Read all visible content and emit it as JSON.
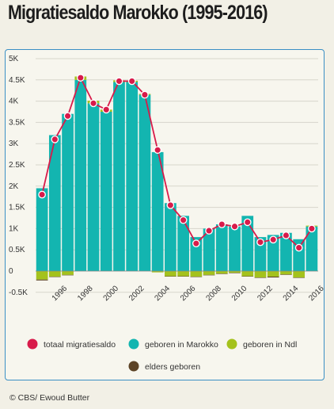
{
  "title": "Migratiesaldo Marokko (1995-2016)",
  "footer": "© CBS/ Ewoud Butter",
  "colors": {
    "totaal": "#d81b4a",
    "marokko": "#13b5b0",
    "ndl": "#a4c21c",
    "elders": "#5c4326",
    "frame": "#3a8fc4",
    "background": "#f2f0e6"
  },
  "chart_data": {
    "type": "bar",
    "years": [
      1995,
      1996,
      1997,
      1998,
      1999,
      2000,
      2001,
      2002,
      2003,
      2004,
      2005,
      2006,
      2007,
      2008,
      2009,
      2010,
      2011,
      2012,
      2013,
      2014,
      2015,
      2016
    ],
    "x_tick_labels": [
      "1996",
      "1998",
      "2000",
      "2002",
      "2004",
      "2006",
      "2008",
      "2010",
      "2012",
      "2014",
      "2016"
    ],
    "y_tick_labels": [
      "5K",
      "4.5K",
      "4K",
      "3.5K",
      "3K",
      "2.5K",
      "2K",
      "1.5K",
      "1K",
      "0.5K",
      "0",
      "-0.5K"
    ],
    "ylim": [
      -500,
      5000
    ],
    "legend_position": "bottom",
    "series": [
      {
        "name": "totaal migratiesaldo",
        "type": "line",
        "values": [
          1800,
          3100,
          3650,
          4550,
          3950,
          3800,
          4470,
          4470,
          4150,
          2850,
          1550,
          1200,
          650,
          950,
          1100,
          1050,
          1150,
          680,
          740,
          840,
          550,
          1000
        ]
      },
      {
        "name": "geboren in Marokko",
        "type": "bar",
        "values": [
          1950,
          3200,
          3700,
          4500,
          3950,
          3750,
          4450,
          4450,
          4150,
          2800,
          1600,
          1300,
          800,
          1000,
          1100,
          1050,
          1300,
          800,
          850,
          900,
          750,
          1050
        ]
      },
      {
        "name": "geboren in Ndl",
        "type": "bar",
        "values": [
          -200,
          -130,
          -90,
          80,
          60,
          50,
          40,
          30,
          20,
          -30,
          -120,
          -120,
          -130,
          -90,
          -60,
          -40,
          -120,
          -150,
          -130,
          -80,
          -150,
          20
        ]
      },
      {
        "name": "elders geboren",
        "type": "bar",
        "values": [
          -20,
          -10,
          -10,
          0,
          0,
          0,
          0,
          0,
          0,
          0,
          -10,
          -10,
          -10,
          -10,
          -10,
          -10,
          -10,
          -10,
          -20,
          -10,
          -10,
          0
        ]
      }
    ]
  }
}
